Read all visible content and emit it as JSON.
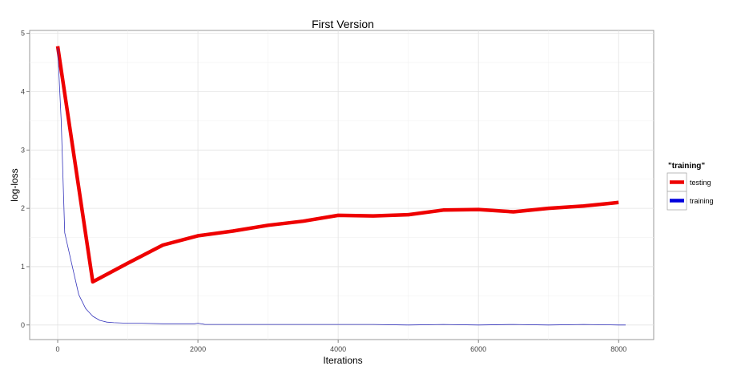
{
  "chart_data": {
    "type": "line",
    "title": "First Version",
    "xlabel": "Iterations",
    "ylabel": "log-loss",
    "xlim": [
      -400,
      8500
    ],
    "ylim": [
      -0.25,
      5.05
    ],
    "xticks": [
      0,
      2000,
      4000,
      6000,
      8000
    ],
    "yticks": [
      0,
      1,
      2,
      3,
      4,
      5
    ],
    "grid": true,
    "legend": {
      "title": "\"training\"",
      "position": "right",
      "entries": [
        "testing",
        "training"
      ]
    },
    "series": [
      {
        "name": "testing",
        "color": "#ee0000",
        "line_width": "thick",
        "x": [
          0,
          500,
          1000,
          1500,
          2000,
          2500,
          3000,
          3500,
          4000,
          4500,
          5000,
          5500,
          6000,
          6500,
          7000,
          7500,
          8000
        ],
        "y": [
          4.78,
          0.74,
          1.06,
          1.37,
          1.53,
          1.61,
          1.71,
          1.78,
          1.88,
          1.87,
          1.89,
          1.97,
          1.98,
          1.94,
          2.0,
          2.04,
          2.1
        ]
      },
      {
        "name": "training",
        "color": "#3333bb",
        "line_width": "thin",
        "x": [
          0,
          50,
          100,
          200,
          300,
          400,
          500,
          600,
          700,
          800,
          1000,
          1200,
          1500,
          1800,
          1950,
          2000,
          2100,
          2500,
          3000,
          3500,
          4000,
          4500,
          5000,
          5500,
          6000,
          6500,
          7000,
          7500,
          8000,
          8100
        ],
        "y": [
          4.75,
          3.5,
          1.58,
          1.05,
          0.52,
          0.28,
          0.15,
          0.08,
          0.05,
          0.04,
          0.03,
          0.03,
          0.02,
          0.02,
          0.02,
          0.03,
          0.01,
          0.01,
          0.01,
          0.01,
          0.01,
          0.01,
          0.0,
          0.01,
          0.0,
          0.01,
          0.0,
          0.01,
          0.0,
          0.0
        ]
      }
    ]
  }
}
